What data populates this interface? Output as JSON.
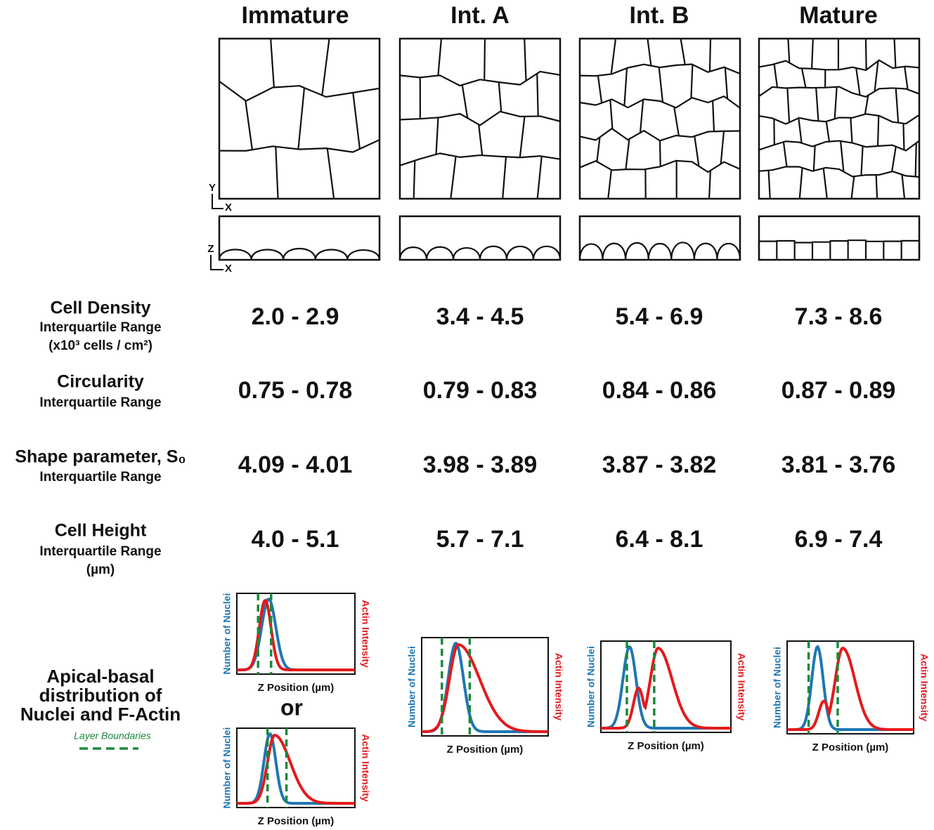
{
  "columns": [
    "Immature",
    "Int. A",
    "Int. B",
    "Mature"
  ],
  "axes": {
    "y": "Y",
    "x": "X",
    "z": "Z"
  },
  "rows": [
    {
      "label": "Cell Density",
      "sublabels": [
        "Interquartile Range",
        "(x10³ cells / cm²)"
      ],
      "values": [
        "2.0 - 2.9",
        "3.4 - 4.5",
        "5.4 - 6.9",
        "7.3 - 8.6"
      ]
    },
    {
      "label": "Circularity",
      "sublabels": [
        "Interquartile Range"
      ],
      "values": [
        "0.75 - 0.78",
        "0.79 - 0.83",
        "0.84 - 0.86",
        "0.87 - 0.89"
      ]
    },
    {
      "label": "Shape parameter, S₀",
      "sublabels": [
        "Interquartile Range"
      ],
      "values": [
        "4.09 - 4.01",
        "3.98 - 3.89",
        "3.87 - 3.82",
        "3.81 - 3.76"
      ]
    },
    {
      "label": "Cell Height",
      "sublabels": [
        "Interquartile Range",
        "(µm)"
      ],
      "values": [
        "4.0 - 5.1",
        "5.7 - 7.1",
        "6.4 - 8.1",
        "6.9 - 7.4"
      ]
    }
  ],
  "distribution": {
    "label": [
      "Apical-basal",
      "distribution of",
      "Nuclei and F-Actin"
    ],
    "legend": "Layer Boundaries",
    "or": "or",
    "y_left": "Number of Nuclei",
    "y_right": "Actin Intensity",
    "x_label": "Z Position (µm)"
  }
}
